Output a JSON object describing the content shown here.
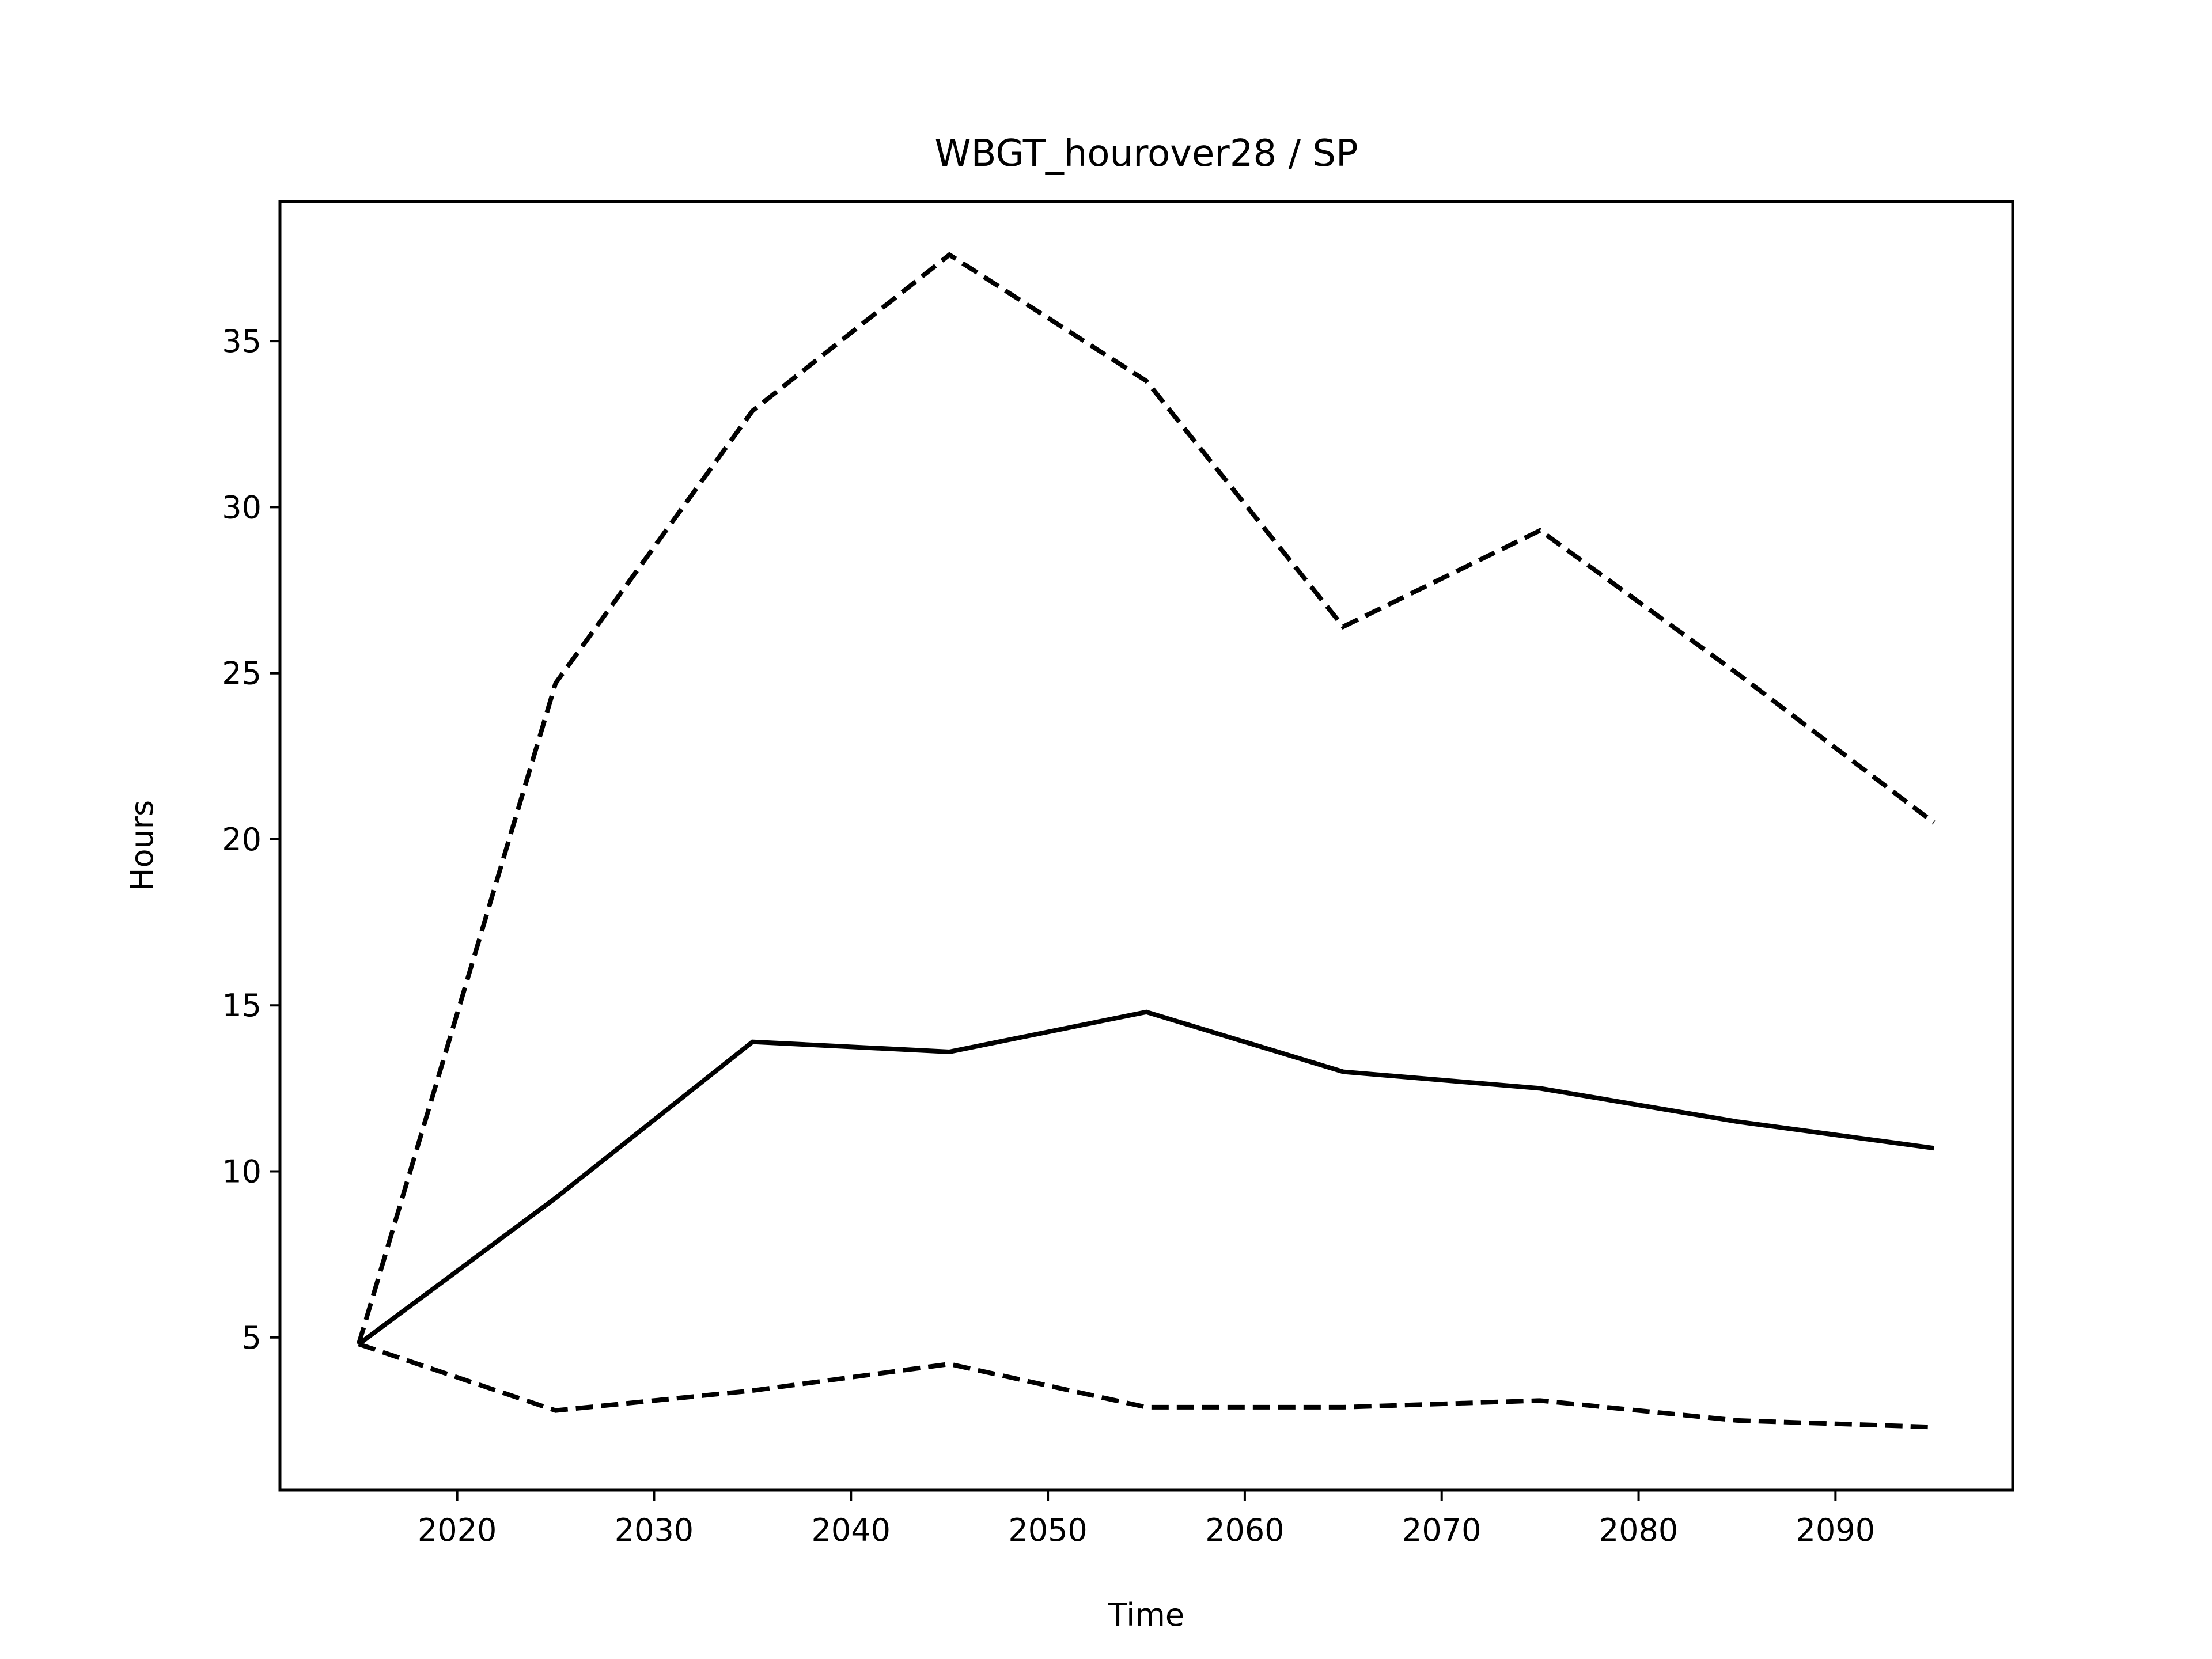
{
  "chart_data": {
    "type": "line",
    "title": "WBGT_hourover28 / SP",
    "xlabel": "Time",
    "ylabel": "Hours",
    "xlim": [
      2011,
      2099
    ],
    "ylim": [
      0.4,
      39.2
    ],
    "x_ticks": [
      2020,
      2030,
      2040,
      2050,
      2060,
      2070,
      2080,
      2090
    ],
    "y_ticks": [
      5,
      10,
      15,
      20,
      25,
      30,
      35
    ],
    "grid": false,
    "legend": "none",
    "x": [
      2015,
      2025,
      2035,
      2045,
      2055,
      2065,
      2075,
      2085,
      2095
    ],
    "series": [
      {
        "style": "solid",
        "color": "#000000",
        "values": [
          4.8,
          9.2,
          13.9,
          13.6,
          14.8,
          13.0,
          12.5,
          11.5,
          10.7
        ]
      },
      {
        "style": "dashed",
        "color": "#000000",
        "values": [
          4.8,
          24.7,
          32.9,
          37.6,
          33.8,
          26.4,
          29.3,
          25.0,
          20.5
        ]
      },
      {
        "style": "dashed",
        "color": "#000000",
        "values": [
          4.8,
          2.8,
          3.4,
          4.2,
          2.9,
          2.9,
          3.1,
          2.5,
          2.3
        ]
      }
    ]
  }
}
